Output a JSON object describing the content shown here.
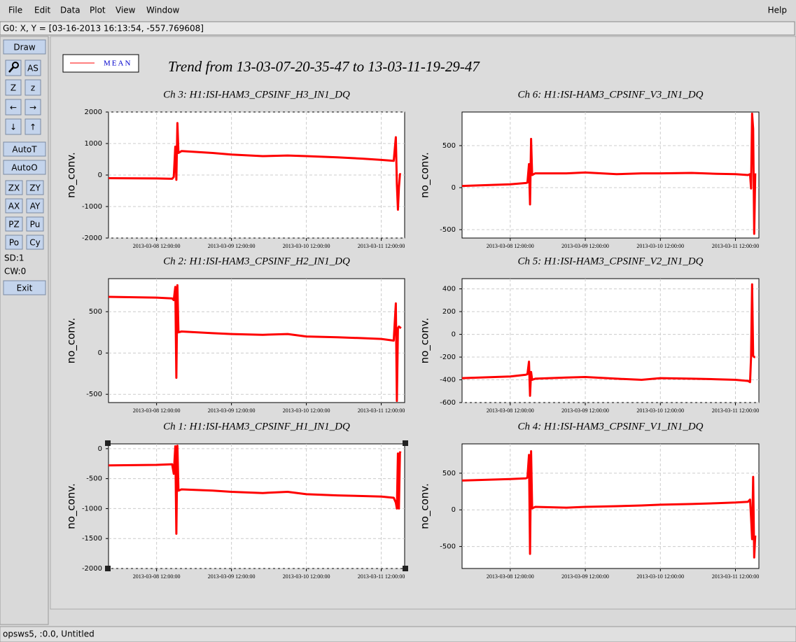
{
  "window": {
    "menu": [
      "File",
      "Edit",
      "Data",
      "Plot",
      "View",
      "Window"
    ],
    "help": "Help",
    "status": "G0: X, Y = [03-16-2013 16:13:54, -557.769608]",
    "footer": "opsws5, :0.0, Untitled",
    "toolbar": {
      "draw": "Draw",
      "icons": [
        "AS",
        "Z",
        "z",
        "←",
        "→",
        "↓",
        "↑"
      ],
      "auto": [
        "AutoT",
        "AutoO"
      ],
      "pairs": [
        "ZX",
        "ZY",
        "AX",
        "AY",
        "PZ",
        "Pu",
        "Po",
        "Cy"
      ],
      "info": [
        "SD:1",
        "CW:0"
      ],
      "exit": "Exit"
    }
  },
  "chart_data": {
    "type": "line",
    "title": "Trend from 13-03-07-20-35-47 to 13-03-11-19-29-47",
    "series_name": "MEAN",
    "color": "#ff0000",
    "grid": true,
    "x": [
      "2013-03-07 20:36:00",
      "2013-03-08 12:00:00",
      "2013-03-08 17:00:00",
      "2013-03-08 17:30:00",
      "2013-03-08 18:00:00",
      "2013-03-08 18:20:00",
      "2013-03-08 18:40:00",
      "2013-03-08 19:00:00",
      "2013-03-08 20:00:00",
      "2013-03-09 06:00:00",
      "2013-03-09 12:00:00",
      "2013-03-09 22:00:00",
      "2013-03-10 06:00:00",
      "2013-03-10 12:00:00",
      "2013-03-10 22:00:00",
      "2013-03-11 06:00:00",
      "2013-03-11 12:00:00",
      "2013-03-11 16:00:00",
      "2013-03-11 16:40:00",
      "2013-03-11 17:00:00",
      "2013-03-11 17:20:00",
      "2013-03-11 17:40:00",
      "2013-03-11 18:00:00",
      "2013-03-11 18:20:00"
    ],
    "xlim": [
      "2013-03-07 20:35:47",
      "2013-03-11 19:29:47"
    ],
    "xticks": [
      "2013-03-08 12:00:00",
      "2013-03-09 12:00:00",
      "2013-03-10 12:00:00",
      "2013-03-11 12:00:00"
    ],
    "panels": [
      {
        "type": "line",
        "title": "Ch 3: H1:ISI-HAM3_CPSINF_H3_IN1_DQ",
        "ylabel": "no_conv.",
        "ylim": [
          -2000,
          2000
        ],
        "yticks": [
          -2000,
          -1000,
          0,
          1000,
          2000
        ],
        "values": [
          -100,
          -110,
          -120,
          -60,
          900,
          -150,
          1650,
          700,
          760,
          700,
          650,
          600,
          620,
          600,
          560,
          520,
          480,
          450,
          1200,
          -300,
          -1100,
          -400,
          30,
          20
        ]
      },
      {
        "type": "line",
        "title": "Ch 6: H1:ISI-HAM3_CPSINF_V3_IN1_DQ",
        "ylabel": "no_conv.",
        "ylim": [
          -600,
          900
        ],
        "yticks": [
          -500,
          0,
          500
        ],
        "values": [
          20,
          40,
          55,
          60,
          280,
          -200,
          580,
          150,
          170,
          170,
          180,
          160,
          170,
          170,
          175,
          165,
          160,
          150,
          160,
          -10,
          880,
          700,
          -550,
          170
        ]
      },
      {
        "type": "line",
        "title": "Ch 2: H1:ISI-HAM3_CPSINF_H2_IN1_DQ",
        "ylabel": "no_conv.",
        "ylim": [
          -600,
          900
        ],
        "yticks": [
          -500,
          0,
          500
        ],
        "values": [
          680,
          670,
          660,
          640,
          800,
          -300,
          820,
          250,
          260,
          240,
          230,
          220,
          230,
          200,
          190,
          180,
          170,
          150,
          600,
          -580,
          300,
          320,
          310,
          300
        ]
      },
      {
        "type": "line",
        "title": "Ch 5: H1:ISI-HAM3_CPSINF_V2_IN1_DQ",
        "ylabel": "no_conv.",
        "ylim": [
          -600,
          490
        ],
        "yticks": [
          -600,
          -400,
          -200,
          0,
          200,
          400
        ],
        "values": [
          -385,
          -370,
          -355,
          -350,
          -240,
          -540,
          -330,
          -400,
          -390,
          -380,
          -375,
          -390,
          -400,
          -385,
          -390,
          -395,
          -400,
          -410,
          -420,
          -200,
          440,
          -190,
          -200,
          -200
        ]
      },
      {
        "type": "line",
        "title": "Ch 1: H1:ISI-HAM3_CPSINF_H1_IN1_DQ",
        "ylabel": "no_conv.",
        "ylim": [
          -2000,
          80
        ],
        "yticks": [
          -2000,
          -1500,
          -1000,
          -500,
          0
        ],
        "values": [
          -280,
          -270,
          -260,
          -420,
          40,
          -1420,
          50,
          -700,
          -680,
          -700,
          -720,
          -740,
          -720,
          -760,
          -780,
          -790,
          -800,
          -820,
          -900,
          -1000,
          -80,
          -1000,
          -60,
          -70
        ]
      },
      {
        "type": "line",
        "title": "Ch 4: H1:ISI-HAM3_CPSINF_V1_IN1_DQ",
        "ylabel": "no_conv.",
        "ylim": [
          -800,
          900
        ],
        "yticks": [
          -500,
          0,
          500
        ],
        "values": [
          400,
          420,
          430,
          440,
          750,
          -600,
          800,
          20,
          40,
          30,
          40,
          50,
          60,
          70,
          80,
          90,
          100,
          110,
          140,
          -100,
          -400,
          450,
          -650,
          -350
        ]
      }
    ]
  }
}
